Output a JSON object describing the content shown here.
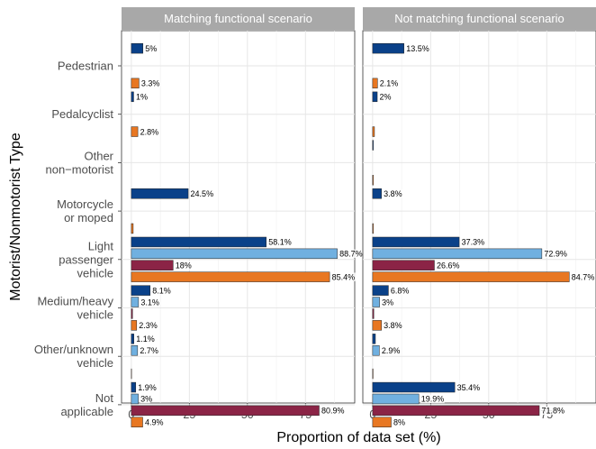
{
  "chart_data": {
    "type": "bar",
    "orientation": "horizontal",
    "xlabel": "Proportion of data set (%)",
    "ylabel": "Motorist/Nonmotorist Type",
    "xlim": [
      0,
      92
    ],
    "xticks": [
      0,
      25,
      50,
      75
    ],
    "grid": true,
    "facets": [
      "Matching functional scenario",
      "Not matching functional scenario"
    ],
    "categories": [
      [
        "Pedestrian"
      ],
      [
        "Pedalcyclist"
      ],
      [
        "Other",
        "non−motorist"
      ],
      [
        "Motorcycle",
        "or moped"
      ],
      [
        "Light",
        "passenger",
        "vehicle"
      ],
      [
        "Medium/heavy",
        "vehicle"
      ],
      [
        "Other/unknown",
        "vehicle"
      ],
      [
        "Not",
        "applicable"
      ]
    ],
    "series_colors": [
      "#0a4189",
      "#70b0e0",
      "#8b2446",
      "#e87722"
    ],
    "panels": [
      {
        "facet": "Matching functional scenario",
        "groups": [
          [
            5,
            0,
            0,
            3.3
          ],
          [
            1,
            0,
            0,
            2.8
          ],
          [
            0,
            0,
            0,
            0
          ],
          [
            24.5,
            0,
            0,
            0.8
          ],
          [
            58.1,
            88.7,
            18,
            85.4
          ],
          [
            8.1,
            3.1,
            0.5,
            2.3
          ],
          [
            1.1,
            2.7,
            0,
            0.1
          ],
          [
            1.9,
            3,
            80.9,
            4.9
          ]
        ],
        "labels": [
          [
            "5%",
            "",
            "",
            "3.3%"
          ],
          [
            "1%",
            "",
            "",
            "2.8%"
          ],
          [
            "",
            "",
            "",
            ""
          ],
          [
            "24.5%",
            "",
            "",
            ""
          ],
          [
            "58.1%",
            "88.7%",
            "18%",
            "85.4%"
          ],
          [
            "8.1%",
            "3.1%",
            "",
            "2.3%"
          ],
          [
            "1.1%",
            "2.7%",
            "",
            ""
          ],
          [
            "1.9%",
            "3%",
            "80.9%",
            "4.9%"
          ]
        ]
      },
      {
        "facet": "Not matching functional scenario",
        "groups": [
          [
            13.5,
            0,
            0,
            2.1
          ],
          [
            2,
            0,
            0,
            0.8
          ],
          [
            0.3,
            0,
            0,
            0.3
          ],
          [
            3.8,
            0,
            0,
            0.3
          ],
          [
            37.3,
            72.9,
            26.6,
            84.7
          ],
          [
            6.8,
            3,
            0.5,
            3.8
          ],
          [
            1.2,
            2.9,
            0,
            0.2
          ],
          [
            35.4,
            19.9,
            71.8,
            8
          ]
        ],
        "labels": [
          [
            "13.5%",
            "",
            "",
            "2.1%"
          ],
          [
            "2%",
            "",
            "",
            ""
          ],
          [
            "",
            "",
            "",
            ""
          ],
          [
            "3.8%",
            "",
            "",
            ""
          ],
          [
            "37.3%",
            "72.9%",
            "26.6%",
            "84.7%"
          ],
          [
            "6.8%",
            "3%",
            "",
            "3.8%"
          ],
          [
            "",
            "2.9%",
            "",
            ""
          ],
          [
            "35.4%",
            "19.9%",
            "71.8%",
            "8%"
          ]
        ]
      }
    ]
  }
}
